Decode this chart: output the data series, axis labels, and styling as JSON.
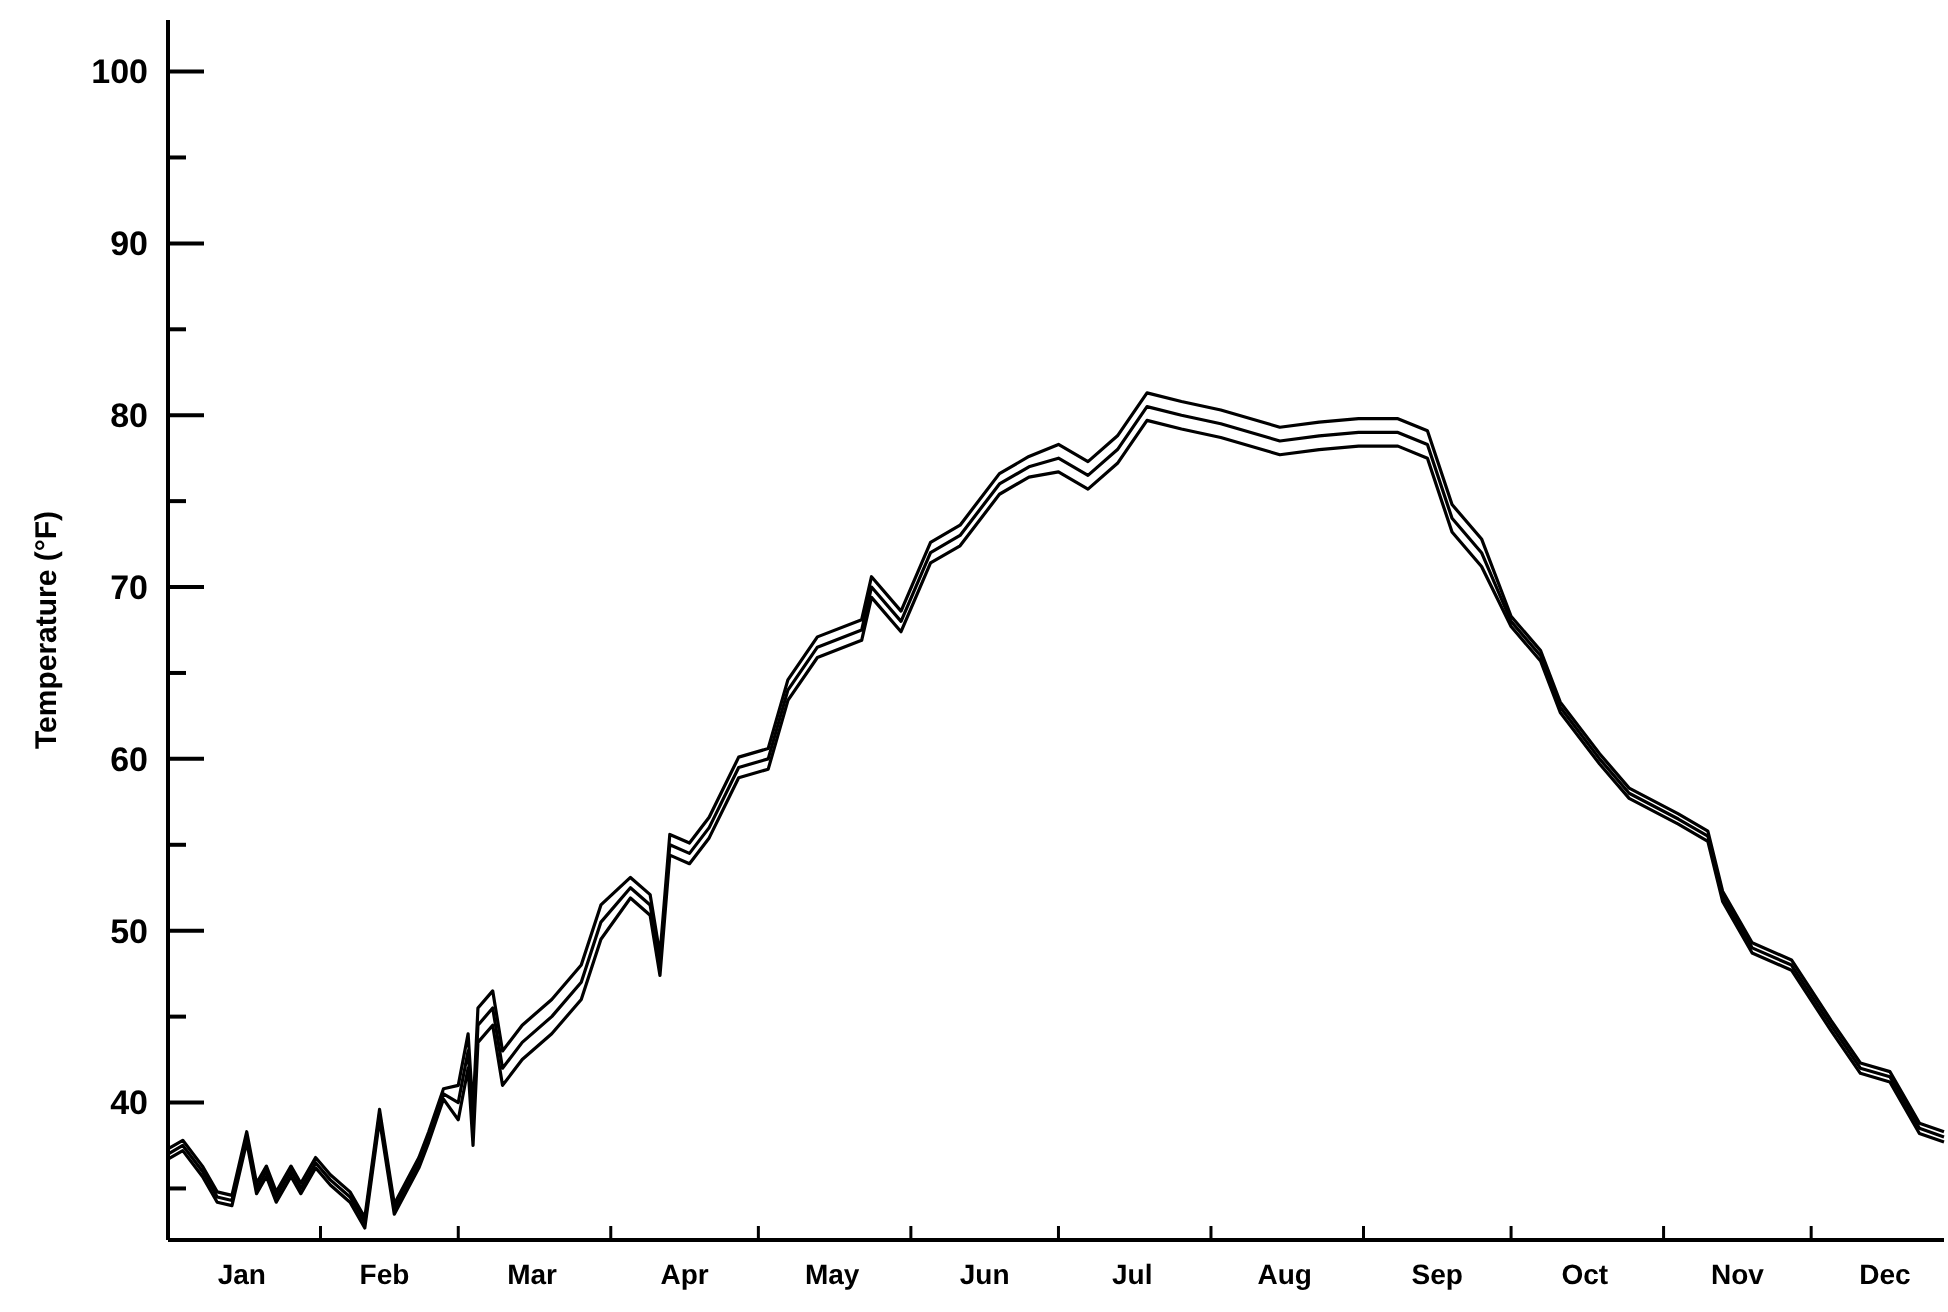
{
  "chart_data": {
    "type": "line",
    "ylabel": "Temperature (°F)",
    "x": [
      "--01-01",
      "--01-04",
      "--01-08",
      "--01-11",
      "--01-14",
      "--01-17",
      "--01-19",
      "--01-21",
      "--01-23",
      "--01-26",
      "--01-28",
      "--01-31",
      "--02-03",
      "--02-07",
      "--02-10",
      "--02-13",
      "--02-16",
      "--02-21",
      "--02-23",
      "--02-26",
      "--03-01",
      "--03-03",
      "--03-04",
      "--03-05",
      "--03-08",
      "--03-10",
      "--03-14",
      "--03-20",
      "--03-26",
      "--03-30",
      "--04-05",
      "--04-09",
      "--04-11",
      "--04-13",
      "--04-17",
      "--04-21",
      "--04-27",
      "--05-03",
      "--05-07",
      "--05-13",
      "--05-22",
      "--05-24",
      "--05-30",
      "--06-05",
      "--06-11",
      "--06-19",
      "--06-25",
      "--07-01",
      "--07-07",
      "--07-13",
      "--07-19",
      "--07-26",
      "--08-03",
      "--08-15",
      "--08-23",
      "--08-31",
      "--09-08",
      "--09-14",
      "--09-19",
      "--09-25",
      "--10-01",
      "--10-07",
      "--10-11",
      "--10-19",
      "--10-25",
      "--11-04",
      "--11-10",
      "--11-13",
      "--11-19",
      "--11-27",
      "--12-05",
      "--12-11",
      "--12-17",
      "--12-23",
      "--12-28"
    ],
    "series": [
      {
        "color": "#000000",
        "values": [
          37.3,
          37.8,
          36.3,
          34.8,
          34.6,
          38.3,
          35.3,
          36.3,
          34.8,
          36.3,
          35.3,
          36.8,
          35.8,
          34.8,
          33.3,
          39.6,
          34.1,
          36.8,
          38.3,
          40.8,
          41,
          44,
          39.5,
          45.5,
          46.5,
          43,
          44.5,
          46,
          48,
          51.5,
          53.1,
          52.1,
          48.6,
          55.6,
          55.1,
          56.6,
          60.1,
          60.6,
          64.6,
          67.1,
          68.1,
          70.6,
          68.6,
          72.6,
          73.6,
          76.6,
          77.6,
          78.3,
          77.3,
          78.8,
          81.3,
          80.8,
          80.3,
          79.3,
          79.6,
          79.8,
          79.8,
          79.1,
          74.8,
          72.8,
          68.3,
          66.3,
          63.3,
          60.3,
          58.3,
          56.8,
          55.8,
          52.3,
          49.3,
          48.3,
          44.8,
          42.3,
          41.8,
          38.8,
          38.3
        ]
      },
      {
        "color": "#000000",
        "values": [
          37,
          37.5,
          36,
          34.5,
          34.3,
          38,
          35,
          36,
          34.5,
          36,
          35,
          36.5,
          35.5,
          34.5,
          33,
          39.3,
          33.8,
          36.5,
          38,
          40.5,
          40,
          43,
          38.5,
          44.5,
          45.5,
          42,
          43.5,
          45,
          47,
          50.5,
          52.5,
          51.5,
          48,
          55,
          54.5,
          56,
          59.5,
          60,
          64,
          66.5,
          67.5,
          70,
          68,
          72,
          73,
          76,
          77,
          77.5,
          76.5,
          78,
          80.5,
          80,
          79.5,
          78.5,
          78.8,
          79,
          79,
          78.3,
          74,
          72,
          68,
          66,
          63,
          60,
          58,
          56.5,
          55.5,
          52,
          49,
          48,
          44.5,
          42,
          41.5,
          38.5,
          38
        ]
      },
      {
        "color": "#000000",
        "values": [
          36.7,
          37.2,
          35.7,
          34.2,
          34,
          37.7,
          34.7,
          35.7,
          34.2,
          35.7,
          34.7,
          36.2,
          35.2,
          34.2,
          32.7,
          39,
          33.5,
          36.2,
          37.7,
          40.2,
          39,
          42,
          37.5,
          43.5,
          44.5,
          41,
          42.5,
          44,
          46,
          49.5,
          51.9,
          50.9,
          47.4,
          54.4,
          53.9,
          55.4,
          58.9,
          59.4,
          63.4,
          65.9,
          66.9,
          69.4,
          67.4,
          71.4,
          72.4,
          75.4,
          76.4,
          76.7,
          75.7,
          77.2,
          79.7,
          79.2,
          78.7,
          77.7,
          78,
          78.2,
          78.2,
          77.5,
          73.2,
          71.2,
          67.7,
          65.7,
          62.7,
          59.7,
          57.7,
          56.2,
          55.2,
          51.7,
          48.7,
          47.7,
          44.2,
          41.7,
          41.2,
          38.2,
          37.7
        ]
      }
    ],
    "xlim": [
      "--01-01",
      "--12-28"
    ],
    "xticks": [
      {
        "value": "--01-16",
        "label": "Jan"
      },
      {
        "value": "--02-01",
        "label": null
      },
      {
        "value": "--02-14",
        "label": "Feb"
      },
      {
        "value": "--03-01",
        "label": null
      },
      {
        "value": "--03-16",
        "label": "Mar"
      },
      {
        "value": "--04-01",
        "label": null
      },
      {
        "value": "--04-16",
        "label": "Apr"
      },
      {
        "value": "--05-01",
        "label": null
      },
      {
        "value": "--05-16",
        "label": "May"
      },
      {
        "value": "--06-01",
        "label": null
      },
      {
        "value": "--06-16",
        "label": "Jun"
      },
      {
        "value": "--07-01",
        "label": null
      },
      {
        "value": "--07-16",
        "label": "Jul"
      },
      {
        "value": "--08-01",
        "label": null
      },
      {
        "value": "--08-16",
        "label": "Aug"
      },
      {
        "value": "--09-01",
        "label": null
      },
      {
        "value": "--09-16",
        "label": "Sep"
      },
      {
        "value": "--10-01",
        "label": null
      },
      {
        "value": "--10-16",
        "label": "Oct"
      },
      {
        "value": "--11-01",
        "label": null
      },
      {
        "value": "--11-16",
        "label": "Nov"
      },
      {
        "value": "--12-01",
        "label": null
      },
      {
        "value": "--12-16",
        "label": "Dec"
      }
    ],
    "ylim": [
      32,
      103
    ],
    "yticks": [
      {
        "value": 35,
        "label": null
      },
      40,
      {
        "value": 45,
        "label": null
      },
      50,
      {
        "value": 55,
        "label": null
      },
      60,
      {
        "value": 65,
        "label": null
      },
      70,
      {
        "value": 75,
        "label": null
      },
      80,
      {
        "value": 85,
        "label": null
      },
      90,
      {
        "value": 95,
        "label": null
      },
      100
    ]
  }
}
